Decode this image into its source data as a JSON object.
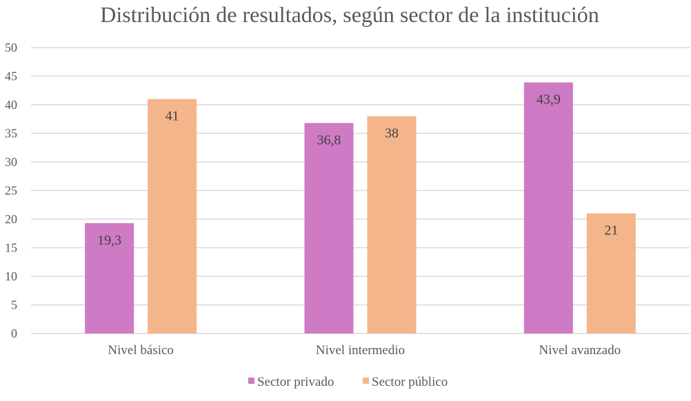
{
  "chart_data": {
    "type": "bar",
    "title": "Distribución de resultados, según sector de la institución",
    "categories": [
      "Nivel básico",
      "Nivel intermedio",
      "Nivel avanzado"
    ],
    "series": [
      {
        "name": "Sector privado",
        "values": [
          19.3,
          36.8,
          43.9
        ],
        "labels": [
          "19,3",
          "36,8",
          "43,9"
        ],
        "color": "#CE7AC5"
      },
      {
        "name": "Sector público",
        "values": [
          41,
          38,
          21
        ],
        "labels": [
          "41",
          "38",
          "21"
        ],
        "color": "#F4B58A"
      }
    ],
    "ylim": [
      0,
      50
    ],
    "yticks": [
      0,
      5,
      10,
      15,
      20,
      25,
      30,
      35,
      40,
      45,
      50
    ],
    "grid": true,
    "legend": "bottom",
    "xlabel": "",
    "ylabel": ""
  }
}
